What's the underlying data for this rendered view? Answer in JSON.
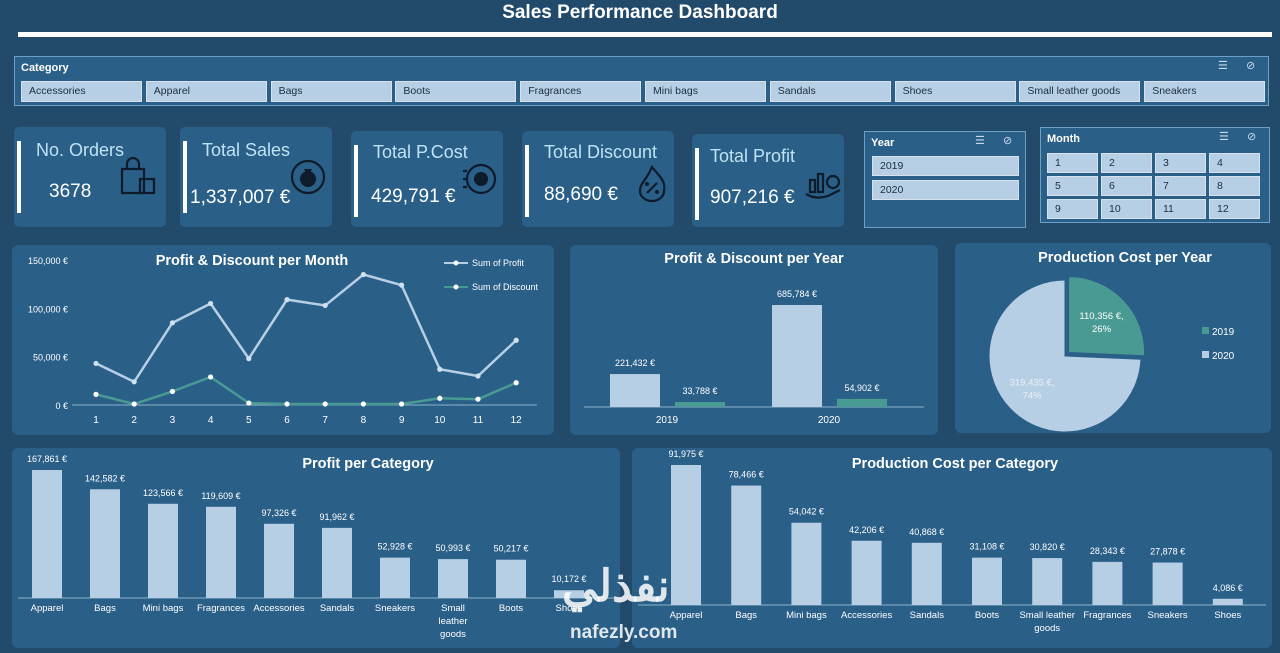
{
  "header": {
    "title": "Sales Performance Dashboard"
  },
  "category_slicer": {
    "label": "Category",
    "items": [
      "Accessories",
      "Apparel",
      "Bags",
      "Boots",
      "Fragrances",
      "Mini bags",
      "Sandals",
      "Shoes",
      "Small leather goods",
      "Sneakers"
    ]
  },
  "kpis": [
    {
      "label": "No. Orders",
      "value": "3678",
      "icon": "shopping-bag-icon"
    },
    {
      "label": "Total Sales",
      "value": "1,337,007 €",
      "icon": "money-bag-cycle-icon"
    },
    {
      "label": "Total P.Cost",
      "value": "429,791 €",
      "icon": "gear-coin-icon"
    },
    {
      "label": "Total Discount",
      "value": "88,690 €",
      "icon": "fire-percent-icon"
    },
    {
      "label": "Total Profit",
      "value": "907,216 €",
      "icon": "hand-coins-icon"
    }
  ],
  "year_slicer": {
    "label": "Year",
    "items": [
      "2019",
      "2020"
    ]
  },
  "month_slicer": {
    "label": "Month",
    "items": [
      "1",
      "2",
      "3",
      "4",
      "5",
      "6",
      "7",
      "8",
      "9",
      "10",
      "11",
      "12"
    ]
  },
  "colors": {
    "background": "#214a6b",
    "panel": "#2a5f88",
    "bar": "#b7cfe4",
    "teal": "#4a9a94",
    "profit_line": "#b7cfe4",
    "discount_line": "#4a9a94"
  },
  "chart_data": [
    {
      "id": "monthly",
      "type": "line",
      "title": "Profit & Discount per Month",
      "x": [
        "1",
        "2",
        "3",
        "4",
        "5",
        "6",
        "7",
        "8",
        "9",
        "10",
        "11",
        "12"
      ],
      "series": [
        {
          "name": "Sum of Profit",
          "values": [
            43000,
            24000,
            85000,
            105000,
            48000,
            109000,
            103000,
            135000,
            124000,
            37000,
            30000,
            67000
          ]
        },
        {
          "name": "Sum of Discount",
          "values": [
            11000,
            1000,
            14000,
            29000,
            2000,
            1000,
            1000,
            1000,
            1000,
            7000,
            6000,
            23000
          ]
        }
      ],
      "yticks": [
        "150,000 €",
        "100,000 €",
        "50,000 €",
        "0 €"
      ],
      "ylim": [
        0,
        150000
      ],
      "legend": "top-right"
    },
    {
      "id": "yearly",
      "type": "bar",
      "title": "Profit & Discount per Year",
      "categories": [
        "2019",
        "2020"
      ],
      "series": [
        {
          "values": [
            221432,
            685784
          ],
          "labels": [
            "221,432 €",
            "685,784 €"
          ]
        },
        {
          "values": [
            33788,
            54902
          ],
          "labels": [
            "33,788 €",
            "54,902 €"
          ]
        }
      ]
    },
    {
      "id": "pcost_year",
      "type": "pie",
      "title": "Production Cost per Year",
      "slices": [
        {
          "name": "2019",
          "value": 110356,
          "label": "110,356 €, 26%"
        },
        {
          "name": "2020",
          "value": 319435,
          "label": "319,435 €, 74%"
        }
      ],
      "legend": "right"
    },
    {
      "id": "profit_cat",
      "type": "bar",
      "title": "Profit per Category",
      "categories": [
        "Apparel",
        "Bags",
        "Mini bags",
        "Fragrances",
        "Accessories",
        "Sandals",
        "Sneakers",
        "Small leather goods",
        "Boots",
        "Shoes"
      ],
      "values": [
        167861,
        142582,
        123566,
        119609,
        97326,
        91962,
        52928,
        50993,
        50217,
        10172
      ],
      "labels": [
        "167,861 €",
        "142,582 €",
        "123,566 €",
        "119,609 €",
        "97,326 €",
        "91,962 €",
        "52,928 €",
        "50,993 €",
        "50,217 €",
        "10,172 €"
      ]
    },
    {
      "id": "pcost_cat",
      "type": "bar",
      "title": "Production Cost per Category",
      "categories": [
        "Apparel",
        "Bags",
        "Mini bags",
        "Accessories",
        "Sandals",
        "Boots",
        "Small leather goods",
        "Fragrances",
        "Sneakers",
        "Shoes"
      ],
      "values": [
        91975,
        78466,
        54042,
        42206,
        40868,
        31108,
        30820,
        28343,
        27878,
        4086
      ],
      "labels": [
        "91,975 €",
        "78,466 €",
        "54,042 €",
        "42,206 €",
        "40,868 €",
        "31,108 €",
        "30,820 €",
        "28,343 €",
        "27,878 €",
        "4,086 €"
      ]
    }
  ],
  "watermark": {
    "arabic": "نفذلي",
    "latin": "nafezly.com"
  }
}
